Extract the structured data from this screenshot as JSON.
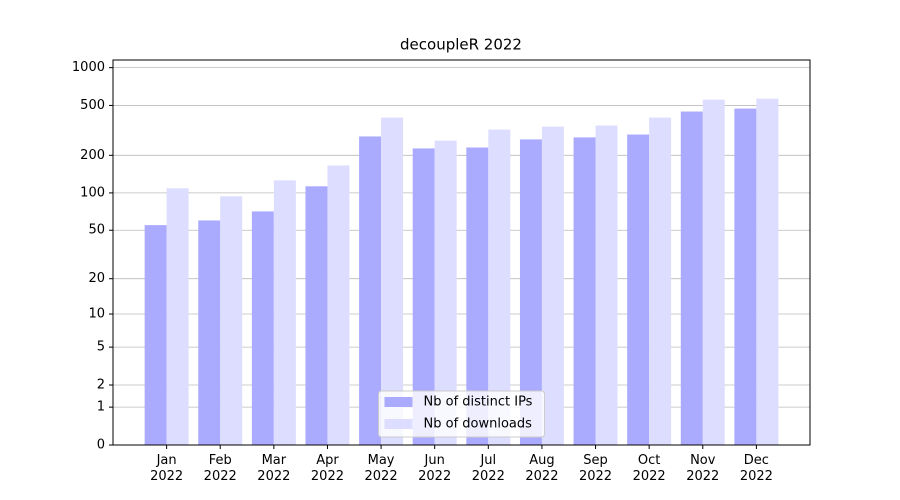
{
  "chart_data": {
    "type": "bar",
    "title": "decoupleR 2022",
    "scale": "log1p",
    "categories": [
      "Jan\n2022",
      "Feb\n2022",
      "Mar\n2022",
      "Apr\n2022",
      "May\n2022",
      "Jun\n2022",
      "Jul\n2022",
      "Aug\n2022",
      "Sep\n2022",
      "Oct\n2022",
      "Nov\n2022",
      "Dec\n2022"
    ],
    "series": [
      {
        "name": "Nb of distinct IPs",
        "color": "#aaaaff",
        "values": [
          55,
          60,
          71,
          113,
          283,
          227,
          231,
          268,
          278,
          293,
          447,
          472
        ]
      },
      {
        "name": "Nb of downloads",
        "color": "#ddddff",
        "values": [
          109,
          94,
          126,
          166,
          400,
          262,
          321,
          339,
          346,
          400,
          556,
          566
        ]
      }
    ],
    "ylim": [
      0,
      1150
    ],
    "yticks": [
      0,
      1,
      2,
      5,
      10,
      20,
      50,
      100,
      200,
      500,
      1000
    ],
    "grid": true,
    "legend": "lower center"
  }
}
